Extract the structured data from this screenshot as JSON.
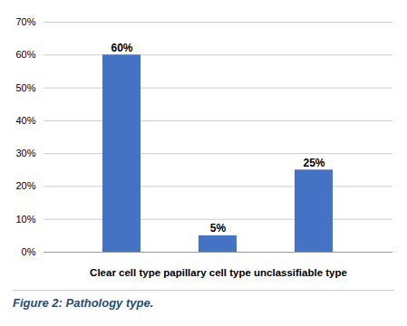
{
  "chart_data": {
    "type": "bar",
    "categories": [
      null,
      null,
      null
    ],
    "values": [
      60,
      5,
      25
    ],
    "value_labels": [
      "60%",
      "5%",
      "25%"
    ],
    "data_labels": true,
    "color": "#4472C4",
    "xlabel": "Clear cell type papillary cell type unclassifiable type",
    "caption": "Figure 2: Pathology type.",
    "ylim": [
      0,
      70
    ],
    "yticks": [
      {
        "value": 0,
        "label": "0%"
      },
      {
        "value": 10,
        "label": "10%"
      },
      {
        "value": 20,
        "label": "20%"
      },
      {
        "value": 30,
        "label": "30%"
      },
      {
        "value": 40,
        "label": "40%"
      },
      {
        "value": 50,
        "label": "50%"
      },
      {
        "value": 60,
        "label": "60%"
      },
      {
        "value": 70,
        "label": "70%"
      }
    ],
    "grid": true,
    "tick_labels": "y"
  }
}
